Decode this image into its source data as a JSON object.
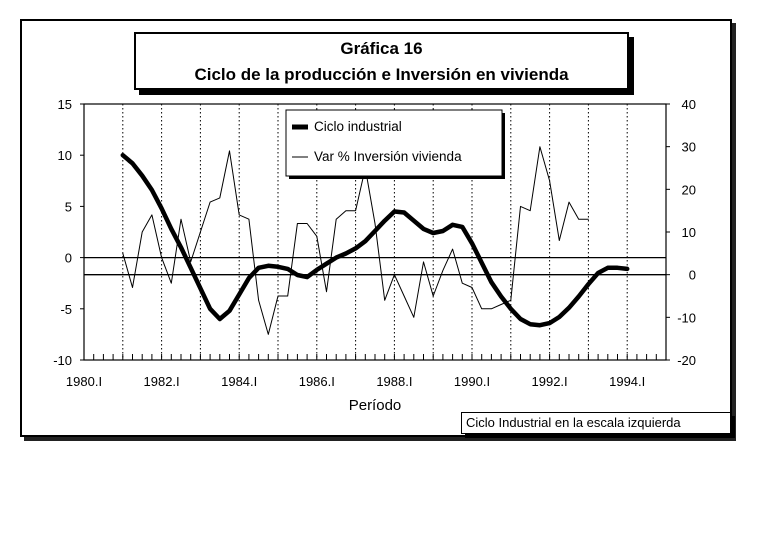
{
  "chart_data": {
    "type": "line",
    "title": "Gráfica 16",
    "subtitle": "Ciclo de la producción e Inversión en vivienda",
    "xlabel": "Período",
    "note": "Ciclo Industrial en la escala izquierda",
    "x_ticks": [
      "1980.I",
      "1982.I",
      "1984.I",
      "1986.I",
      "1988.I",
      "1990.I",
      "1992.I",
      "1994.I"
    ],
    "x_range": [
      1980.0,
      1995.0
    ],
    "y_left": {
      "range": [
        -10,
        15
      ],
      "ticks": [
        "15",
        "10",
        "5",
        "0",
        "-5",
        "-10"
      ],
      "tick_values": [
        15,
        10,
        5,
        0,
        -5,
        -10
      ]
    },
    "y_right": {
      "range": [
        -20,
        40
      ],
      "ticks": [
        "40",
        "30",
        "20",
        "10",
        "0",
        "-10",
        "-20"
      ],
      "tick_values": [
        40,
        30,
        20,
        10,
        0,
        -10,
        -20
      ]
    },
    "grid": {
      "vertical_dotted": true,
      "zero_line_left": 0,
      "zero_line_right": 0
    },
    "legend": {
      "position": "top-center"
    },
    "series": [
      {
        "name": "Ciclo industrial",
        "axis": "left",
        "style": "thick",
        "x": [
          1981.0,
          1981.25,
          1981.5,
          1981.75,
          1982.0,
          1982.25,
          1982.5,
          1982.75,
          1983.0,
          1983.25,
          1983.5,
          1983.75,
          1984.0,
          1984.25,
          1984.5,
          1984.75,
          1985.0,
          1985.25,
          1985.5,
          1985.75,
          1986.0,
          1986.25,
          1986.5,
          1986.75,
          1987.0,
          1987.25,
          1987.5,
          1987.75,
          1988.0,
          1988.25,
          1988.5,
          1988.75,
          1989.0,
          1989.25,
          1989.5,
          1989.75,
          1990.0,
          1990.25,
          1990.5,
          1990.75,
          1991.0,
          1991.25,
          1991.5,
          1991.75,
          1992.0,
          1992.25,
          1992.5,
          1992.75,
          1993.0,
          1993.25,
          1993.5,
          1993.75,
          1994.0
        ],
        "values": [
          10,
          9.2,
          8,
          6.6,
          4.8,
          2.8,
          1,
          -1,
          -3,
          -5,
          -6,
          -5.2,
          -3.6,
          -2,
          -1,
          -0.8,
          -0.9,
          -1.1,
          -1.7,
          -1.9,
          -1.2,
          -0.6,
          0,
          0.4,
          0.9,
          1.6,
          2.6,
          3.6,
          4.5,
          4.4,
          3.6,
          2.8,
          2.4,
          2.6,
          3.2,
          3,
          1.4,
          -0.5,
          -2.4,
          -3.8,
          -5,
          -6,
          -6.5,
          -6.6,
          -6.4,
          -5.8,
          -4.9,
          -3.8,
          -2.6,
          -1.5,
          -1,
          -1,
          -1.1
        ]
      },
      {
        "name": "Var % Inversión vivienda",
        "axis": "right",
        "style": "thin",
        "x": [
          1981.0,
          1981.25,
          1981.5,
          1981.75,
          1982.0,
          1982.25,
          1982.5,
          1982.75,
          1983.0,
          1983.25,
          1983.5,
          1983.75,
          1984.0,
          1984.25,
          1984.5,
          1984.75,
          1985.0,
          1985.25,
          1985.5,
          1985.75,
          1986.0,
          1986.25,
          1986.5,
          1986.75,
          1987.0,
          1987.25,
          1987.5,
          1987.75,
          1988.0,
          1988.25,
          1988.5,
          1988.75,
          1989.0,
          1989.25,
          1989.5,
          1989.75,
          1990.0,
          1990.25,
          1990.5,
          1990.75,
          1991.0,
          1991.25,
          1991.5,
          1991.75,
          1992.0,
          1992.25,
          1992.5,
          1992.75,
          1993.0
        ],
        "values": [
          5,
          -3,
          10,
          14,
          4,
          -2,
          13,
          3,
          10,
          17,
          18,
          29,
          14,
          13,
          -6,
          -14,
          -5,
          -5,
          12,
          12,
          9,
          -4,
          13,
          15,
          15,
          25,
          12,
          -6,
          0,
          -5,
          -10,
          3,
          -5,
          1,
          6,
          -2,
          -3,
          -8,
          -8,
          -7,
          -6,
          16,
          15,
          30,
          22,
          8,
          17,
          13,
          13
        ]
      }
    ]
  }
}
